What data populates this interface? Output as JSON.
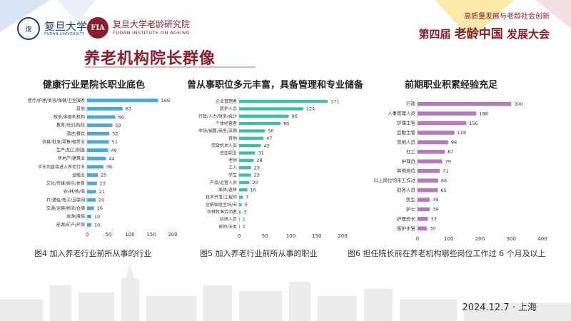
{
  "header": {
    "university_name": "复旦大学",
    "university_sub": "FUDAN UNIVERSITY",
    "institute_name": "复旦大学老龄研究院",
    "institute_en": "FUDAN INSTITUTE ON AGEING",
    "institute_logo_text": "FIA",
    "forum_subtitle": "高质量发展与老龄社会创新",
    "forum_title_prefix": "第四届",
    "forum_title_brand": "老龄中国",
    "forum_title_suffix": "发展大会"
  },
  "page_title": "养老机构院长群像",
  "footer_date": "2024.12.7 · 上海",
  "colors": {
    "bar1": "#4aa7d6",
    "bar2": "#3ec1a0",
    "bar3": "#b57ab8",
    "brand": "#8c1d2c"
  },
  "chart_data": [
    {
      "type": "bar",
      "orientation": "horizontal",
      "title": "健康行业是院长职业底色",
      "caption": "图4 加入养老行业前所从事的行业",
      "categories": [
        "医疗/护理/美容/保健/卫生服务",
        "其他",
        "政府/非盈利机构",
        "教育/培训/院校",
        "酒店/餐饮",
        "贸易/批发/零售/租赁业",
        "生产/加工/制造",
        "房地产/建筑业",
        "毕业后直接进入养老行业",
        "金融业",
        "文化/传媒/娱乐/体育",
        "农/林/牧/渔",
        "IT/通信/电子/互联网",
        "交通/运输/物流/仓储",
        "旅游/度假",
        "能源/矿产/环保"
      ],
      "values": [
        166,
        83,
        66,
        59,
        52,
        51,
        49,
        44,
        38,
        25,
        23,
        21,
        20,
        16,
        10,
        10
      ],
      "xlim": [
        0,
        200
      ],
      "xticks": [
        "0",
        "50",
        "100",
        "150",
        "200"
      ]
    },
    {
      "type": "bar",
      "orientation": "horizontal",
      "title": "曾从事职位多元丰富，具备管理和专业储备",
      "caption": "图5 加入养老行业前所从事的职业",
      "categories": [
        "企业管理者",
        "医护人员",
        "行政/人力/财务/会计",
        "个体经营者",
        "市场/销售/商务/采购",
        "其他",
        "党政机关人员",
        "自由职业",
        "老师",
        "工人",
        "学生",
        "产品/运营人员",
        "离休/退休",
        "技术开发/工程师",
        "全职家庭主妇/夫",
        "农林牧渔劳动者",
        "科研人员",
        "律师/法务"
      ],
      "values": [
        171,
        124,
        96,
        80,
        50,
        47,
        42,
        31,
        28,
        23,
        23,
        20,
        16,
        7,
        5,
        3,
        1,
        1
      ],
      "xlim": [
        0,
        200
      ],
      "xticks": [
        "0",
        "50",
        "100",
        "150",
        "200"
      ]
    },
    {
      "type": "bar",
      "orientation": "horizontal",
      "title": "前期职业积累经验充足",
      "caption": "图6 担任院长前在养老机构哪些岗位工作过  6 个月及以上",
      "categories": [
        "行政",
        "人事管理人员",
        "护理主管",
        "后勤主管",
        "营销人员",
        "社工",
        "护理员",
        "其他岗位",
        "以上岗位均未工作过",
        "财务人员",
        "医生",
        "护士",
        "护理班长",
        "医护主管"
      ],
      "values": [
        300,
        188,
        156,
        118,
        98,
        87,
        79,
        71,
        66,
        65,
        39,
        39,
        33,
        30
      ],
      "xlim": [
        0,
        400
      ],
      "xticks": [
        "0",
        "100",
        "200",
        "300",
        "400"
      ]
    }
  ]
}
